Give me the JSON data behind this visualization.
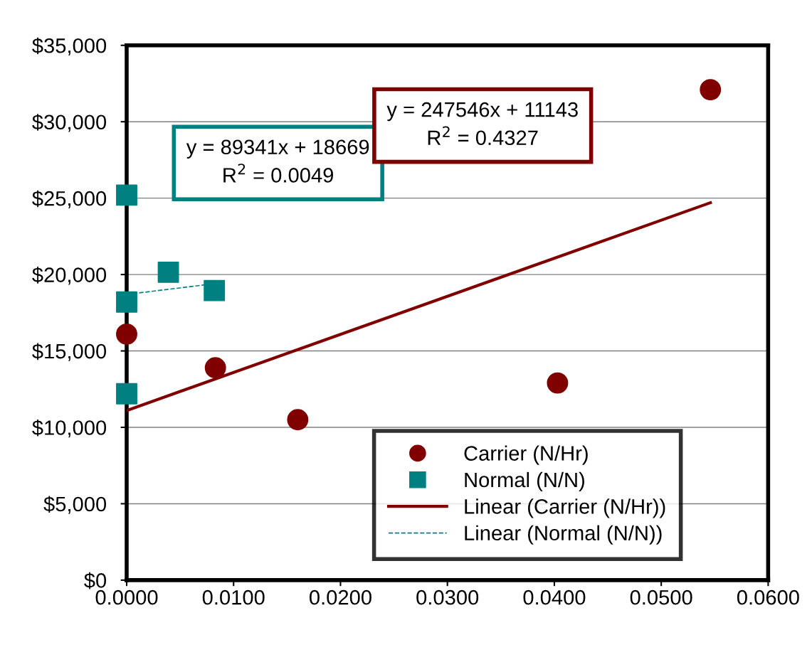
{
  "chart_data": {
    "type": "scatter",
    "xlim": [
      0,
      0.06
    ],
    "ylim": [
      0,
      35000
    ],
    "xticks": [
      {
        "value": 0,
        "label": "0.0000"
      },
      {
        "value": 0.01,
        "label": "0.0100"
      },
      {
        "value": 0.02,
        "label": "0.0200"
      },
      {
        "value": 0.03,
        "label": "0.0300"
      },
      {
        "value": 0.04,
        "label": "0.0400"
      },
      {
        "value": 0.05,
        "label": "0.0500"
      },
      {
        "value": 0.06,
        "label": "0.0600"
      }
    ],
    "yticks": [
      {
        "value": 0,
        "label": "$0"
      },
      {
        "value": 5000,
        "label": "$5,000"
      },
      {
        "value": 10000,
        "label": "$10,000"
      },
      {
        "value": 15000,
        "label": "$15,000"
      },
      {
        "value": 20000,
        "label": "$20,000"
      },
      {
        "value": 25000,
        "label": "$25,000"
      },
      {
        "value": 30000,
        "label": "$30,000"
      },
      {
        "value": 35000,
        "label": "$35,000"
      }
    ],
    "grid": "y",
    "legend": "bottom right",
    "series": [
      {
        "name": "Carrier (N/Hr)",
        "color": "#800000",
        "marker": "circle",
        "x": [
          0,
          0.0083,
          0.016,
          0.0403,
          0.0546
        ],
        "values": [
          16100,
          13900,
          10500,
          12900,
          32100
        ]
      },
      {
        "name": "Normal (N/N)",
        "color": "#008080",
        "marker": "square",
        "x": [
          0,
          0,
          0,
          0.0039,
          0.0082
        ],
        "values": [
          25200,
          18200,
          12200,
          20150,
          18950
        ]
      },
      {
        "name": "Linear (Carrier (N/Hr))",
        "type": "line",
        "color": "#800000",
        "line_style": "solid",
        "x": [
          0,
          0.0546
        ],
        "values": [
          11100,
          24700
        ]
      },
      {
        "name": "Linear (Normal (N/N))",
        "type": "line",
        "color": "#008080",
        "line_style": "dashed",
        "x": [
          0,
          0.0082
        ],
        "values": [
          18700,
          19400
        ]
      }
    ],
    "annotations": [
      "y = 89341x + 18669\nR$^{2}$ = 0.0049",
      "y = 247546x + 11143\nR$^{2}$ = 0.4327"
    ]
  }
}
